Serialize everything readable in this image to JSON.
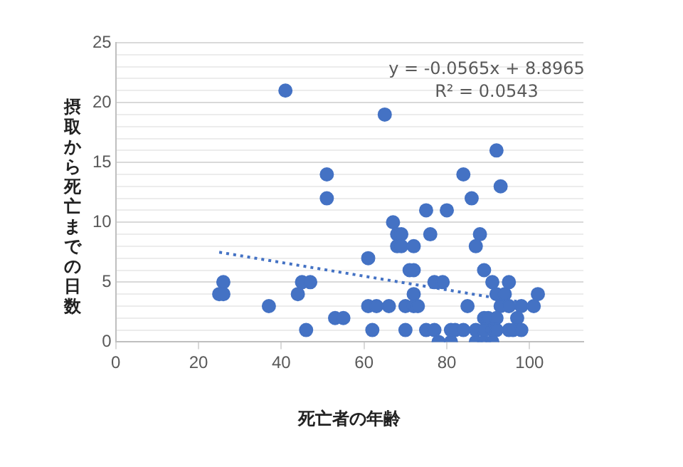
{
  "chart_data": {
    "type": "scatter",
    "xlabel": "死亡者の年齢",
    "ylabel": "摂取から死亡までの日数",
    "annotations": [
      "y = -0.0565x + 8.8965",
      "R² = 0.0543"
    ],
    "xlim": [
      0,
      113
    ],
    "xticks": [
      0,
      20,
      40,
      60,
      80,
      100
    ],
    "ylim": [
      0,
      25
    ],
    "yticks": [
      0,
      {
        "value": 1,
        "label": null
      },
      {
        "value": 2,
        "label": null
      },
      {
        "value": 3,
        "label": null
      },
      {
        "value": 4,
        "label": null
      },
      5,
      {
        "value": 6,
        "label": null
      },
      {
        "value": 7,
        "label": null
      },
      {
        "value": 8,
        "label": null
      },
      {
        "value": 9,
        "label": null
      },
      10,
      {
        "value": 11,
        "label": null
      },
      {
        "value": 12,
        "label": null
      },
      {
        "value": 13,
        "label": null
      },
      {
        "value": 14,
        "label": null
      },
      15,
      {
        "value": 16,
        "label": null
      },
      {
        "value": 17,
        "label": null
      },
      {
        "value": 18,
        "label": null
      },
      {
        "value": 19,
        "label": null
      },
      20,
      {
        "value": 21,
        "label": null
      },
      {
        "value": 22,
        "label": null
      },
      {
        "value": 23,
        "label": null
      },
      {
        "value": 24,
        "label": null
      },
      25
    ],
    "grid": "y",
    "legend": false,
    "series": [
      {
        "color": "#4472c4",
        "marker": "circle",
        "x": [
          41,
          65,
          51,
          51,
          67,
          68,
          68,
          61,
          26,
          25,
          26,
          45,
          47,
          44,
          37,
          53,
          55,
          46,
          61,
          63,
          66,
          62,
          92,
          93,
          84,
          86,
          75,
          80,
          69,
          76,
          88,
          69,
          72,
          87,
          71,
          72,
          89,
          77,
          79,
          91,
          95,
          72,
          92,
          94,
          102,
          70,
          72,
          73,
          85,
          93,
          95,
          98,
          101,
          89,
          90,
          92,
          97,
          70,
          75,
          77,
          81,
          82,
          84,
          87,
          89,
          91,
          92,
          95,
          96,
          98,
          78,
          81,
          87,
          89,
          91
        ],
        "values": [
          21,
          19,
          14,
          12,
          10,
          9,
          8,
          7,
          5,
          4,
          4,
          5,
          5,
          4,
          3,
          2,
          2,
          1,
          3,
          3,
          3,
          1,
          16,
          13,
          14,
          12,
          11,
          11,
          9,
          9,
          9,
          8,
          8,
          8,
          6,
          6,
          6,
          5,
          5,
          5,
          5,
          4,
          4,
          4,
          4,
          3,
          3,
          3,
          3,
          3,
          3,
          3,
          3,
          2,
          2,
          2,
          2,
          1,
          1,
          1,
          1,
          1,
          1,
          1,
          1,
          1,
          1,
          1,
          1,
          1,
          0,
          0,
          0,
          0,
          0
        ]
      },
      {
        "type": "line",
        "color": "#4472c4",
        "marker": "none",
        "line_style": "dotted",
        "x": [
          25,
          102
        ],
        "values": [
          7.5,
          3.1
        ]
      }
    ]
  }
}
